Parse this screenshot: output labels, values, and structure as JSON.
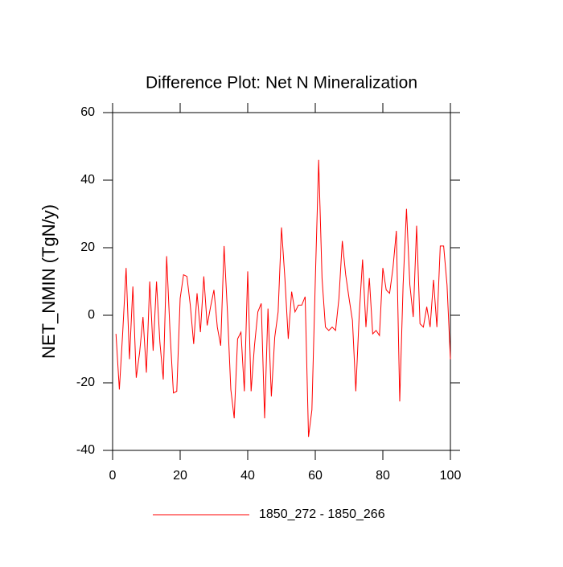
{
  "chart_data": {
    "type": "line",
    "title": "Difference Plot: Net N Mineralization",
    "y_label": "NET_NMIN  (TgN/y)",
    "x": [
      1,
      2,
      3,
      4,
      5,
      6,
      7,
      8,
      9,
      10,
      11,
      12,
      13,
      14,
      15,
      16,
      17,
      18,
      19,
      20,
      21,
      22,
      23,
      24,
      25,
      26,
      27,
      28,
      29,
      30,
      31,
      32,
      33,
      34,
      35,
      36,
      37,
      38,
      39,
      40,
      41,
      42,
      43,
      44,
      45,
      46,
      47,
      48,
      49,
      50,
      51,
      52,
      53,
      54,
      55,
      56,
      57,
      58,
      59,
      60,
      61,
      62,
      63,
      64,
      65,
      66,
      67,
      68,
      69,
      70,
      71,
      72,
      73,
      74,
      75,
      76,
      77,
      78,
      79,
      80,
      81,
      82,
      83,
      84,
      85,
      86,
      87,
      88,
      89,
      90,
      91,
      92,
      93,
      94,
      95,
      96,
      97,
      98,
      99,
      100
    ],
    "series": [
      {
        "name": "1850_272 - 1850_266",
        "color": "#ff0000",
        "values": [
          -5.5,
          -22,
          -5,
          14,
          -13,
          8.5,
          -18.5,
          -11,
          -0.5,
          -17,
          10,
          -10.5,
          10,
          -8,
          -19,
          17.5,
          -5,
          -23,
          -22.5,
          5,
          12,
          11.5,
          3,
          -8.5,
          6.5,
          -5,
          11.5,
          -3,
          2.5,
          7.5,
          -3.5,
          -9,
          20.5,
          1,
          -22,
          -30.5,
          -7,
          -5,
          -22.5,
          13,
          -22.5,
          -9,
          1,
          3.5,
          -30.5,
          2,
          -24,
          -6.5,
          1,
          26,
          11,
          -7,
          7,
          1,
          3,
          3,
          5.5,
          -36,
          -28,
          10,
          46,
          11,
          -3.5,
          -4.5,
          -3.5,
          -4.5,
          5,
          22,
          12,
          5,
          -1.5,
          -22.5,
          0,
          16.5,
          -3.5,
          11,
          -5.5,
          -4.5,
          -6,
          14,
          7.5,
          6.5,
          14,
          25,
          -25.5,
          9,
          31.5,
          9,
          -0.5,
          26.5,
          -2.5,
          -3.5,
          2.5,
          -3.5,
          10.5,
          -3.5,
          20.5,
          20.5,
          9,
          -13
        ]
      }
    ],
    "xlim": [
      0,
      100
    ],
    "xticks": [
      0,
      20,
      40,
      60,
      80,
      100
    ],
    "ylim": [
      -40,
      60
    ],
    "yticks": [
      -40,
      -20,
      0,
      20,
      40,
      60
    ]
  }
}
